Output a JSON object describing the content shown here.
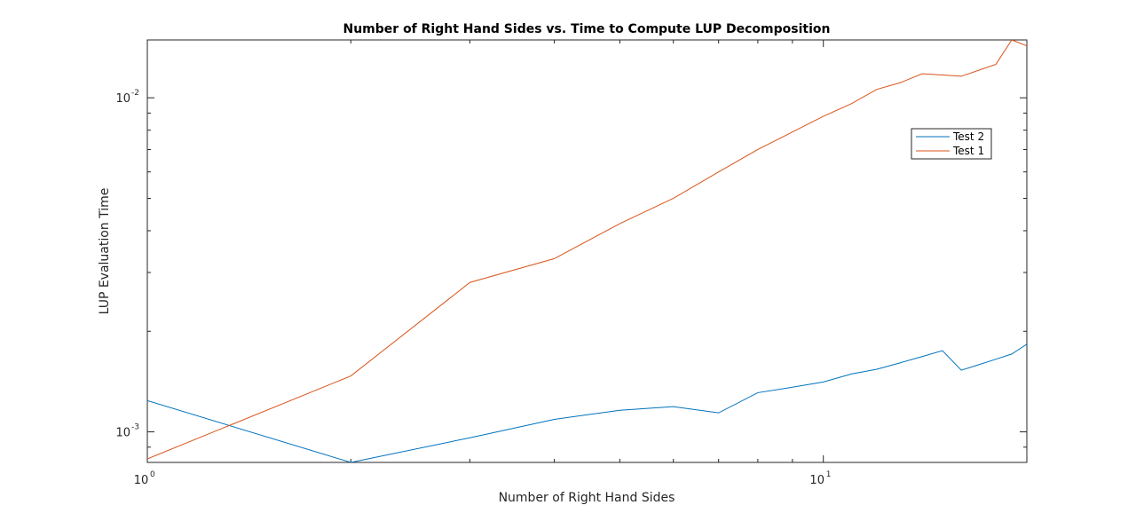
{
  "chart_data": {
    "type": "line",
    "title": "Number of Right Hand Sides vs. Time to Compute LUP Decomposition",
    "xlabel": "Number of Right Hand Sides",
    "ylabel": "LUP Evaluation Time",
    "x_scale": "log",
    "y_scale": "log",
    "xlim": [
      1,
      20
    ],
    "ylim": [
      0.00081,
      0.0149
    ],
    "x_ticks": [
      {
        "value": 1,
        "base": "10",
        "exp": "0"
      },
      {
        "value": 10,
        "base": "10",
        "exp": "1"
      }
    ],
    "y_ticks": [
      {
        "value": 0.001,
        "base": "10",
        "exp": "-3"
      },
      {
        "value": 0.01,
        "base": "10",
        "exp": "-2"
      }
    ],
    "grid": false,
    "legend_position": "top-right",
    "series": [
      {
        "name": "Test 2",
        "color": "#0072BD",
        "x": [
          1,
          2,
          3,
          4,
          5,
          6,
          7,
          8,
          9,
          10,
          11,
          12,
          13,
          14,
          15,
          16,
          17,
          18,
          19,
          20
        ],
        "y": [
          0.00124,
          0.00081,
          0.00096,
          0.00109,
          0.00116,
          0.00119,
          0.00114,
          0.00131,
          0.00136,
          0.00141,
          0.00149,
          0.00154,
          0.00161,
          0.00168,
          0.00175,
          0.00153,
          0.00159,
          0.00165,
          0.00171,
          0.00183
        ]
      },
      {
        "name": "Test 1",
        "color": "#D95319",
        "x": [
          1,
          2,
          3,
          4,
          5,
          6,
          7,
          8,
          9,
          10,
          11,
          12,
          13,
          14,
          15,
          16,
          17,
          18,
          19,
          20
        ],
        "y": [
          0.00083,
          0.00147,
          0.0028,
          0.0033,
          0.0042,
          0.005,
          0.006,
          0.007,
          0.0079,
          0.0088,
          0.0096,
          0.0106,
          0.0111,
          0.0118,
          0.0117,
          0.0116,
          0.0121,
          0.0126,
          0.0149,
          0.0143
        ]
      }
    ]
  }
}
